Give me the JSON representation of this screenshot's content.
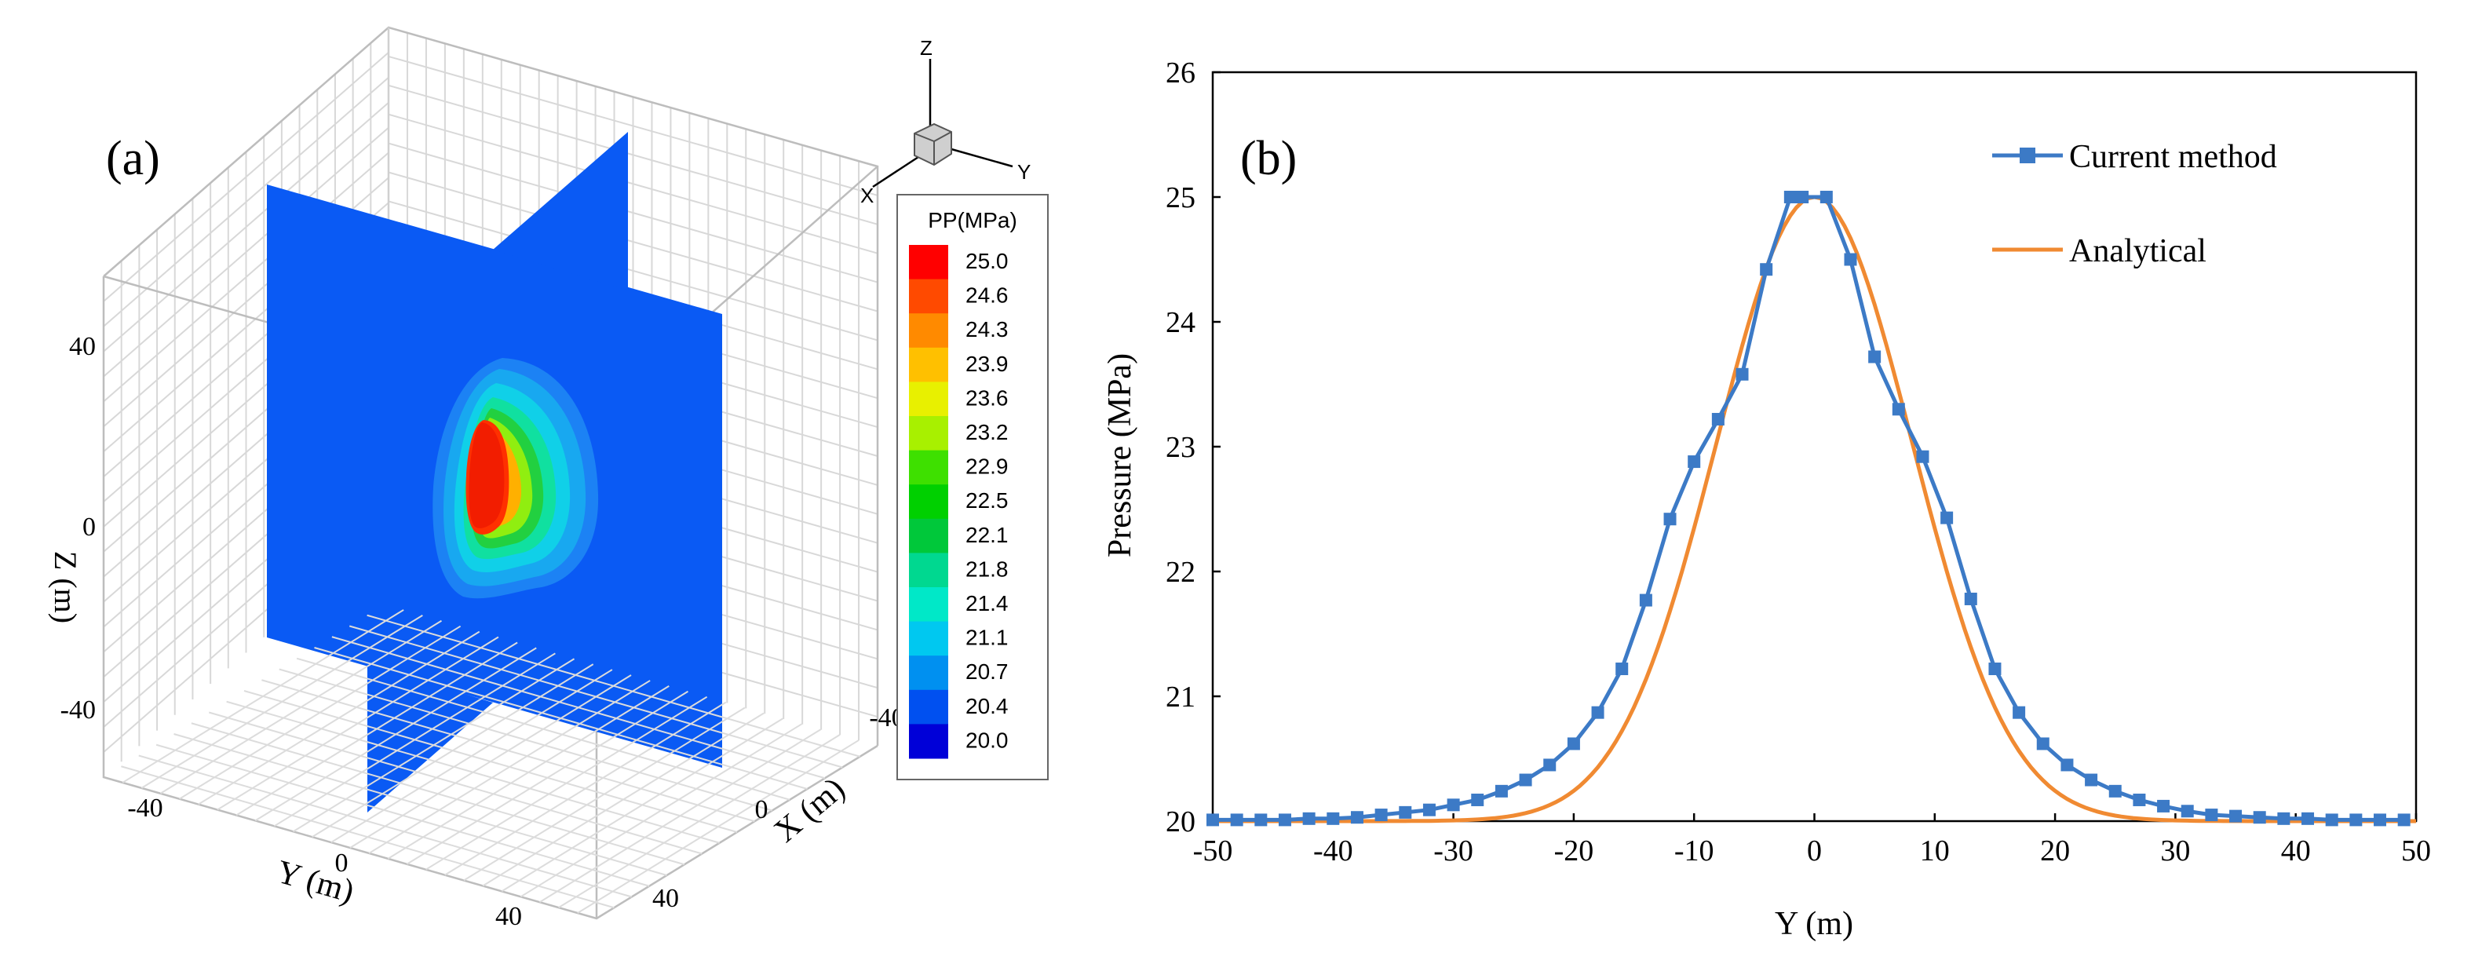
{
  "chart_data": [
    {
      "panel_label": "(a)",
      "type": "heatmap",
      "description_3d": "3D pore-pressure field on two orthogonal slices",
      "axes": {
        "y": {
          "label": "Y (m)",
          "ticks": [
            "-40",
            "0",
            "40"
          ]
        },
        "x": {
          "label": "X (m)",
          "ticks": [
            "-40",
            "0",
            "40"
          ]
        },
        "z": {
          "label": "Z (m)",
          "ticks": [
            "40",
            "0",
            "-40"
          ]
        }
      },
      "orientation_axes": {
        "z": "Z",
        "y": "Y",
        "x": "X"
      },
      "legend": {
        "title": "PP(MPa)",
        "levels": [
          "25.0",
          "24.6",
          "24.3",
          "23.9",
          "23.6",
          "23.2",
          "22.9",
          "22.5",
          "22.1",
          "21.8",
          "21.4",
          "21.1",
          "20.7",
          "20.4",
          "20.0"
        ],
        "colors": [
          "#ff0000",
          "#ff4a00",
          "#ff8a00",
          "#ffc000",
          "#e8f000",
          "#a8f000",
          "#3ee000",
          "#00d000",
          "#00c83a",
          "#00d890",
          "#00e8c8",
          "#00c8f0",
          "#0090f0",
          "#0050f0",
          "#0000d8"
        ]
      }
    },
    {
      "panel_label": "(b)",
      "type": "line",
      "xlabel": "Y (m)",
      "ylabel": "Pressure (MPa)",
      "xlim": [
        -50,
        50
      ],
      "ylim": [
        20,
        26
      ],
      "xticks": [
        -50,
        -40,
        -30,
        -20,
        -10,
        0,
        10,
        20,
        30,
        40,
        50
      ],
      "yticks": [
        20,
        21,
        22,
        23,
        24,
        25,
        26
      ],
      "series": [
        {
          "name": "Current method",
          "color": "#3c7ac6",
          "marker": "square",
          "x": [
            -50,
            -48,
            -46,
            -44,
            -42,
            -40,
            -38,
            -36,
            -34,
            -32,
            -30,
            -28,
            -26,
            -24,
            -22,
            -20,
            -18,
            -16,
            -14,
            -12,
            -10,
            -8,
            -6,
            -4,
            -2,
            -1,
            1,
            3,
            5,
            7,
            9,
            11,
            13,
            15,
            17,
            19,
            21,
            23,
            25,
            27,
            29,
            31,
            33,
            35,
            37,
            39,
            41,
            43,
            45,
            47,
            49
          ],
          "y": [
            20.01,
            20.01,
            20.01,
            20.01,
            20.02,
            20.02,
            20.03,
            20.05,
            20.07,
            20.09,
            20.13,
            20.17,
            20.24,
            20.33,
            20.45,
            20.62,
            20.87,
            21.22,
            21.77,
            22.42,
            22.88,
            23.22,
            23.58,
            24.42,
            25.0,
            25.0,
            25.0,
            24.5,
            23.72,
            23.3,
            22.92,
            22.43,
            21.78,
            21.22,
            20.87,
            20.62,
            20.45,
            20.33,
            20.24,
            20.17,
            20.12,
            20.08,
            20.05,
            20.04,
            20.03,
            20.02,
            20.02,
            20.01,
            20.01,
            20.01,
            20.01
          ]
        },
        {
          "name": "Analytical",
          "color": "#f08a32",
          "marker": "none",
          "function": "20 + 5*exp(-(y/sigma)^2)",
          "sigma": 11.5
        }
      ],
      "legend_position": "top-right"
    }
  ]
}
